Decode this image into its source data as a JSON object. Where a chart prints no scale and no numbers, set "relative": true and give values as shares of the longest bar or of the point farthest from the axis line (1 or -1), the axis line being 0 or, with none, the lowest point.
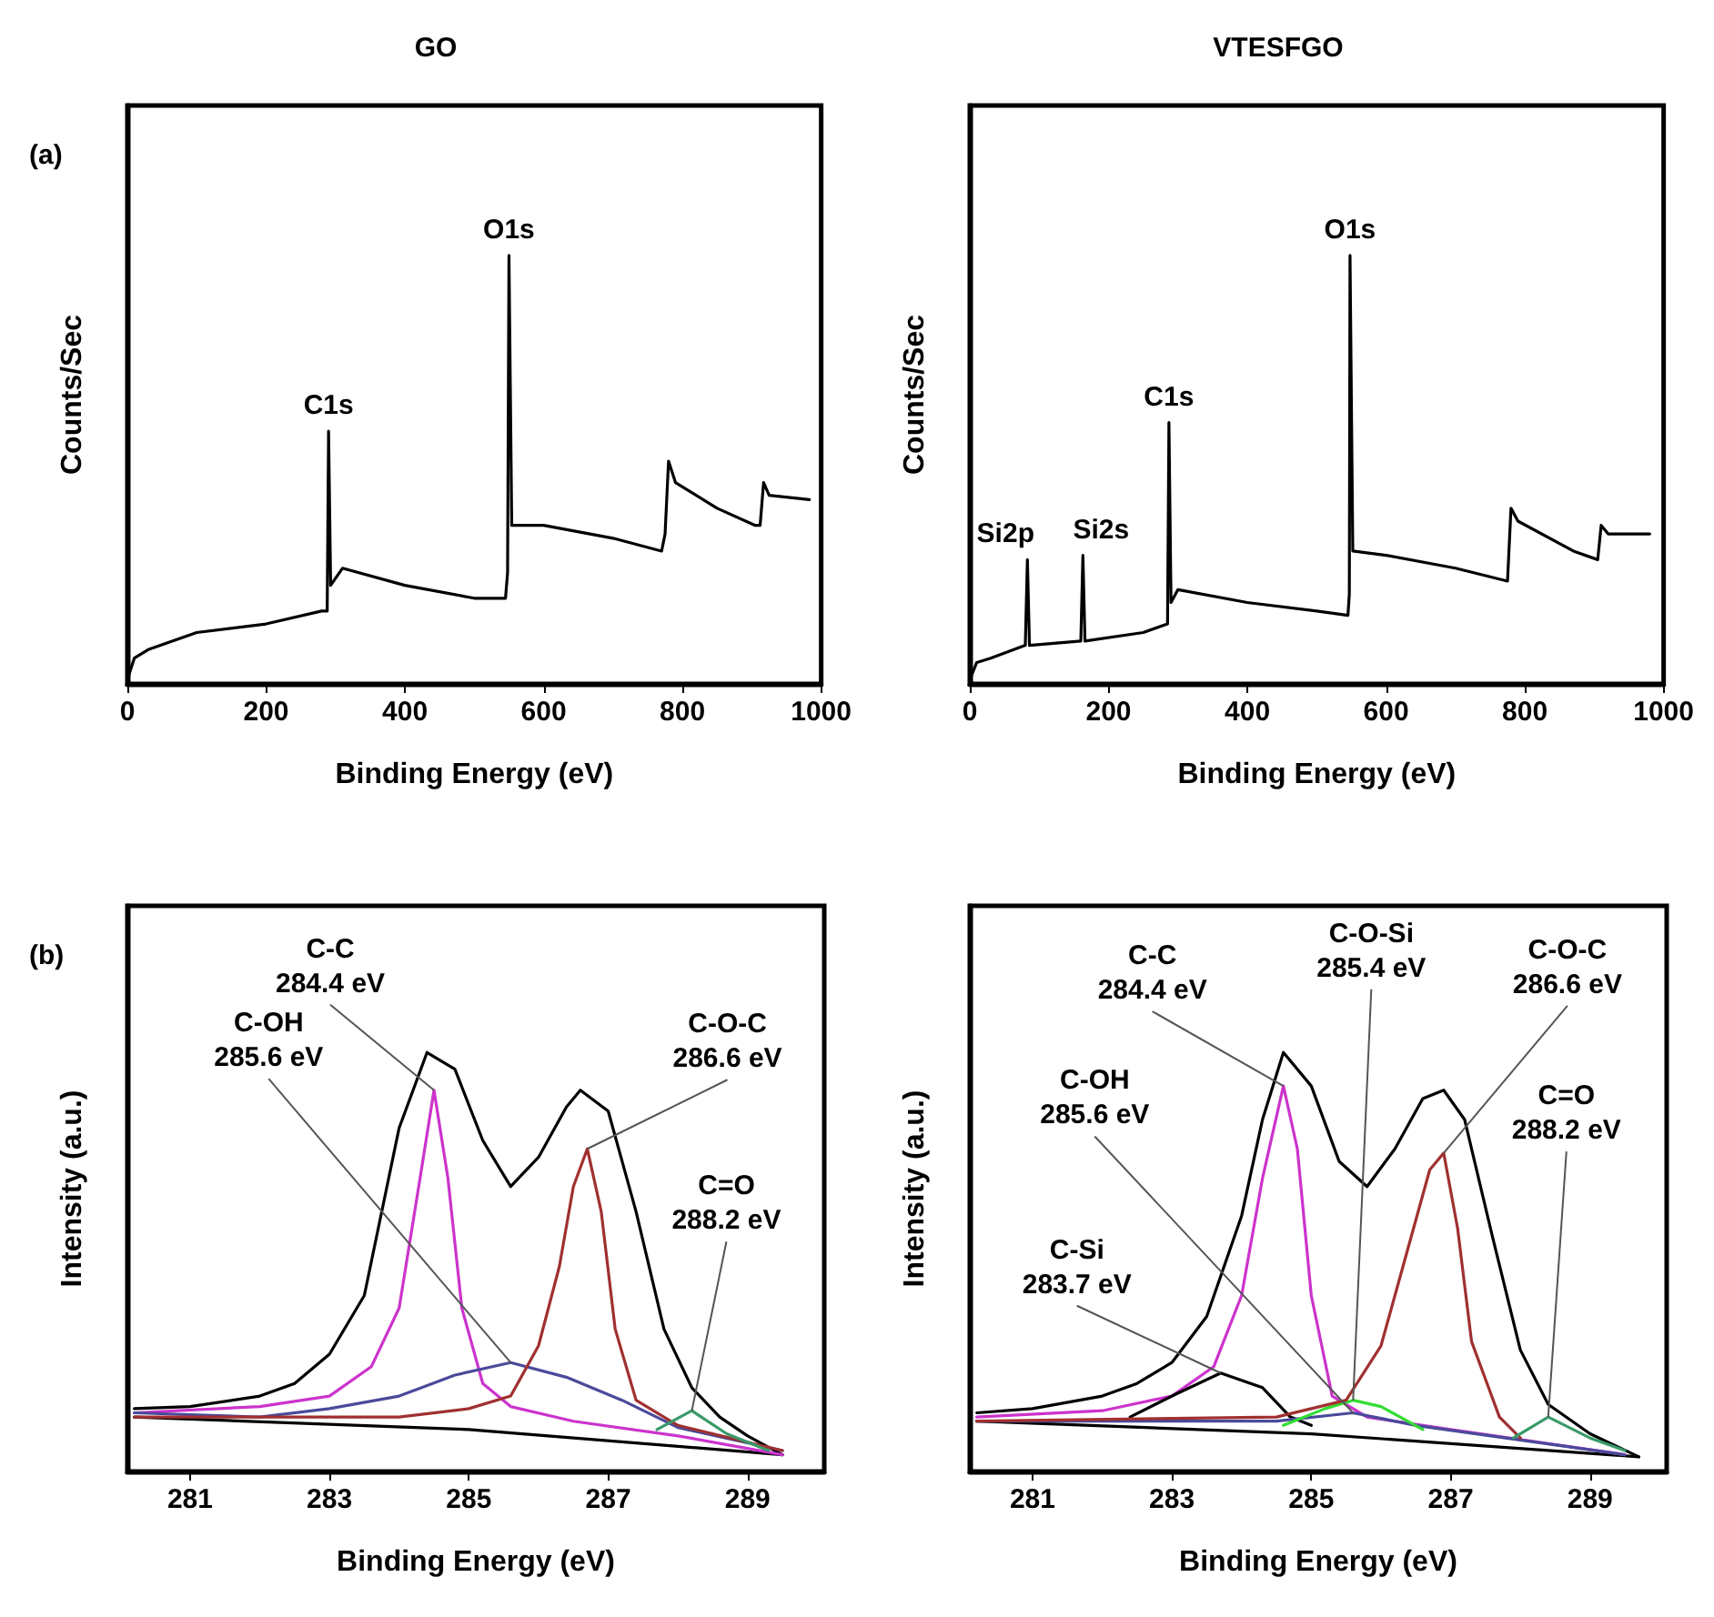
{
  "chart_data": [
    {
      "type": "line",
      "title": "GO",
      "xlabel": "Binding Energy (eV)",
      "ylabel": "Counts/Sec",
      "relative": true,
      "tick_labels": "x",
      "xlim": [
        0,
        1000
      ],
      "xticks": [
        0,
        200,
        400,
        600,
        800,
        1000
      ],
      "annotations": [
        "(a)",
        {
          "text": "C1s",
          "x": 290,
          "y": 0.59
        },
        {
          "text": "O1s",
          "x": 550,
          "y": 1.0
        }
      ],
      "series": [
        {
          "color": "#000000",
          "x": [
            0,
            10,
            30,
            100,
            200,
            280,
            288,
            290,
            293,
            310,
            400,
            500,
            545,
            548,
            550,
            554,
            600,
            700,
            770,
            775,
            780,
            790,
            850,
            905,
            912,
            917,
            925,
            983
          ],
          "values": [
            0.01,
            0.06,
            0.08,
            0.12,
            0.14,
            0.17,
            0.17,
            0.59,
            0.23,
            0.27,
            0.23,
            0.2,
            0.2,
            0.26,
            1.0,
            0.37,
            0.37,
            0.34,
            0.31,
            0.35,
            0.52,
            0.47,
            0.41,
            0.37,
            0.37,
            0.47,
            0.44,
            0.43
          ]
        }
      ]
    },
    {
      "type": "line",
      "title": "VTESFGO",
      "xlabel": "Binding Energy (eV)",
      "ylabel": "Counts/Sec",
      "relative": true,
      "tick_labels": "x",
      "xlim": [
        0,
        1000
      ],
      "xticks": [
        0,
        200,
        400,
        600,
        800,
        1000
      ],
      "annotations": [
        {
          "text": "Si2p",
          "x": 83,
          "y": 0.29
        },
        {
          "text": "Si2s",
          "x": 163,
          "y": 0.3
        },
        {
          "text": "C1s",
          "x": 287,
          "y": 0.61
        },
        {
          "text": "O1s",
          "x": 548,
          "y": 1.0
        }
      ],
      "series": [
        {
          "color": "#000000",
          "x": [
            0,
            10,
            30,
            80,
            83,
            86,
            160,
            163,
            166,
            250,
            285,
            287,
            290,
            300,
            400,
            500,
            545,
            547,
            548,
            552,
            600,
            700,
            775,
            780,
            790,
            870,
            905,
            910,
            920,
            980
          ],
          "values": [
            0.01,
            0.05,
            0.06,
            0.09,
            0.29,
            0.09,
            0.1,
            0.3,
            0.1,
            0.12,
            0.14,
            0.61,
            0.19,
            0.22,
            0.19,
            0.17,
            0.16,
            0.21,
            1.0,
            0.31,
            0.3,
            0.27,
            0.24,
            0.41,
            0.38,
            0.31,
            0.29,
            0.37,
            0.35,
            0.35
          ]
        }
      ]
    },
    {
      "type": "line",
      "xlabel": "Binding Energy (eV)",
      "ylabel": "Intensity (a.u.)",
      "relative": true,
      "tick_labels": "x",
      "xlim": [
        280.1,
        290.1
      ],
      "xticks": [
        281,
        283,
        285,
        287,
        289
      ],
      "annotations": [
        "(b)",
        {
          "text": "C-C\n284.4 eV",
          "x": 284.5,
          "y": 0.91
        },
        {
          "text": "C-OH\n285.6 eV",
          "x": 285.6,
          "y": 0.26
        },
        {
          "text": "C-O-C\n286.6 eV",
          "x": 286.7,
          "y": 0.77
        },
        {
          "text": "C=O\n288.2 eV",
          "x": 288.2,
          "y": 0.145
        }
      ],
      "series": [
        {
          "color": "#000000",
          "x": [
            280.2,
            281,
            282,
            282.5,
            283,
            283.5,
            284,
            284.4,
            284.8,
            285.2,
            285.6,
            286,
            286.4,
            286.6,
            287,
            287.4,
            287.8,
            288.2,
            288.6,
            289,
            289.5
          ],
          "values": [
            0.15,
            0.155,
            0.18,
            0.21,
            0.28,
            0.42,
            0.82,
            1.0,
            0.96,
            0.79,
            0.68,
            0.75,
            0.87,
            0.91,
            0.86,
            0.62,
            0.34,
            0.2,
            0.13,
            0.085,
            0.04
          ]
        },
        {
          "color": "#000000",
          "x": [
            280.2,
            285,
            289.5
          ],
          "values": [
            0.13,
            0.1,
            0.04
          ]
        },
        {
          "color": "#cc33cc",
          "x": [
            280.2,
            282,
            283,
            283.6,
            284,
            284.3,
            284.5,
            284.7,
            284.9,
            285.2,
            285.6,
            286.5,
            288,
            289.5
          ],
          "values": [
            0.14,
            0.155,
            0.18,
            0.25,
            0.39,
            0.7,
            0.91,
            0.7,
            0.39,
            0.21,
            0.155,
            0.12,
            0.085,
            0.04
          ]
        },
        {
          "color": "#4a4a9a",
          "x": [
            280.2,
            282,
            283,
            284,
            284.8,
            285.6,
            286.4,
            287.2,
            288,
            289.5
          ],
          "values": [
            0.14,
            0.13,
            0.15,
            0.18,
            0.23,
            0.26,
            0.225,
            0.17,
            0.105,
            0.05
          ]
        },
        {
          "color": "#a03030",
          "x": [
            280.2,
            284,
            285,
            285.6,
            286,
            286.3,
            286.5,
            286.7,
            286.9,
            287.1,
            287.4,
            288,
            289.5
          ],
          "values": [
            0.13,
            0.13,
            0.15,
            0.18,
            0.3,
            0.49,
            0.68,
            0.77,
            0.62,
            0.34,
            0.17,
            0.11,
            0.05
          ]
        },
        {
          "color": "#3a9a6a",
          "x": [
            287.7,
            288.2,
            288.7,
            289.3
          ],
          "values": [
            0.1,
            0.145,
            0.09,
            0.05
          ]
        }
      ]
    },
    {
      "type": "line",
      "xlabel": "Binding Energy (eV)",
      "ylabel": "Intensity (a.u.)",
      "relative": true,
      "tick_labels": "x",
      "xlim": [
        280.1,
        290.1
      ],
      "xticks": [
        281,
        283,
        285,
        287,
        289
      ],
      "annotations": [
        {
          "text": "C-C\n284.4 eV",
          "x": 284.6,
          "y": 0.92
        },
        {
          "text": "C-OH\n285.6 eV",
          "x": 285.6,
          "y": 0.14
        },
        {
          "text": "C-Si\n283.7 eV",
          "x": 283.7,
          "y": 0.235
        },
        {
          "text": "C-O-Si\n285.4 eV",
          "x": 285.6,
          "y": 0.17
        },
        {
          "text": "C-O-C\n286.6 eV",
          "x": 286.9,
          "y": 0.76
        },
        {
          "text": "C=O\n288.2 eV",
          "x": 288.4,
          "y": 0.13
        }
      ],
      "series": [
        {
          "color": "#000000",
          "x": [
            280.2,
            281,
            282,
            282.5,
            283,
            283.5,
            284,
            284.3,
            284.6,
            285,
            285.4,
            285.8,
            286.2,
            286.6,
            286.9,
            287.2,
            287.6,
            288,
            288.4,
            289,
            289.7
          ],
          "values": [
            0.14,
            0.15,
            0.18,
            0.21,
            0.26,
            0.37,
            0.61,
            0.84,
            1.0,
            0.92,
            0.74,
            0.68,
            0.77,
            0.89,
            0.91,
            0.84,
            0.56,
            0.29,
            0.16,
            0.09,
            0.035
          ]
        },
        {
          "color": "#000000",
          "x": [
            280.2,
            285,
            289.7
          ],
          "values": [
            0.12,
            0.09,
            0.035
          ]
        },
        {
          "color": "#cc33cc",
          "x": [
            280.2,
            282,
            283,
            283.6,
            284,
            284.3,
            284.6,
            284.8,
            285,
            285.3,
            285.8,
            287,
            289.5
          ],
          "values": [
            0.13,
            0.145,
            0.18,
            0.25,
            0.42,
            0.7,
            0.92,
            0.77,
            0.42,
            0.18,
            0.13,
            0.1,
            0.04
          ]
        },
        {
          "color": "#000000",
          "x": [
            282.4,
            283,
            283.7,
            284.3,
            284.7,
            285
          ],
          "values": [
            0.13,
            0.18,
            0.235,
            0.2,
            0.13,
            0.11
          ]
        },
        {
          "color": "#4a4a9a",
          "x": [
            280.2,
            284.5,
            285.6,
            286.5,
            289.5
          ],
          "values": [
            0.12,
            0.12,
            0.14,
            0.11,
            0.04
          ]
        },
        {
          "color": "#33dd33",
          "x": [
            284.6,
            285.2,
            285.6,
            286,
            286.6
          ],
          "values": [
            0.11,
            0.15,
            0.17,
            0.155,
            0.1
          ]
        },
        {
          "color": "#a03030",
          "x": [
            280.2,
            284.5,
            285.5,
            286,
            286.4,
            286.7,
            286.9,
            287.1,
            287.3,
            287.7,
            288
          ],
          "values": [
            0.12,
            0.13,
            0.17,
            0.3,
            0.54,
            0.72,
            0.76,
            0.58,
            0.31,
            0.13,
            0.08
          ]
        },
        {
          "color": "#3a9a6a",
          "x": [
            287.9,
            288.4,
            289,
            289.5
          ],
          "values": [
            0.08,
            0.13,
            0.08,
            0.05
          ]
        }
      ]
    }
  ]
}
